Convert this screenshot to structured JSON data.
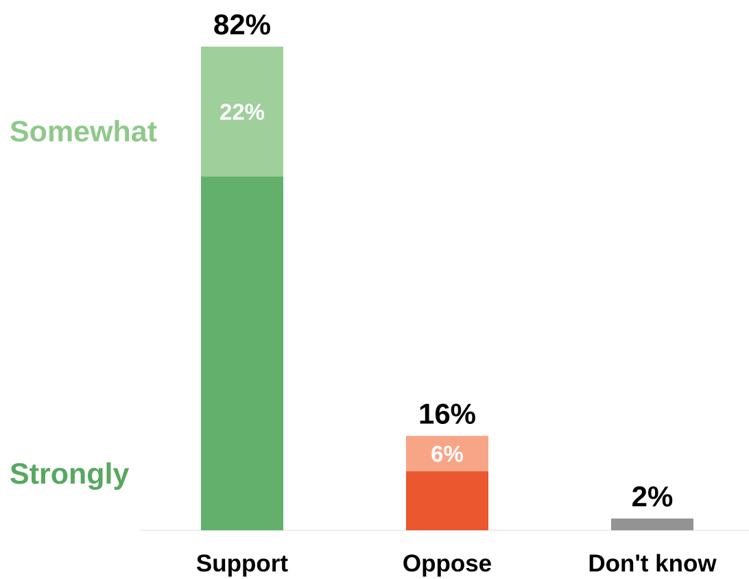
{
  "chart_data": {
    "type": "bar",
    "stacked": true,
    "categories": [
      "Support",
      "Oppose",
      "Don't know"
    ],
    "segments": [
      {
        "category": "Support",
        "layer": "Strongly",
        "value": 60,
        "color": "#62b06c"
      },
      {
        "category": "Support",
        "layer": "Somewhat",
        "value": 22,
        "label": "22%",
        "color": "#9fcf9a"
      },
      {
        "category": "Oppose",
        "layer": "Strongly",
        "value": 10,
        "color": "#eb5830"
      },
      {
        "category": "Oppose",
        "layer": "Somewhat",
        "value": 6,
        "label": "6%",
        "color": "#f8a587"
      },
      {
        "category": "Don't know",
        "layer": "Total",
        "value": 2,
        "color": "#939393"
      }
    ],
    "totals": [
      {
        "category": "Support",
        "value": 82,
        "label": "82%"
      },
      {
        "category": "Oppose",
        "value": 16,
        "label": "16%"
      },
      {
        "category": "Don't know",
        "value": 2,
        "label": "2%"
      }
    ],
    "legend": [
      {
        "label": "Somewhat",
        "color": "#8fc98a"
      },
      {
        "label": "Strongly",
        "color": "#57a85f"
      }
    ],
    "ylim": [
      0,
      82
    ],
    "grid": false,
    "legend_position": "left"
  }
}
